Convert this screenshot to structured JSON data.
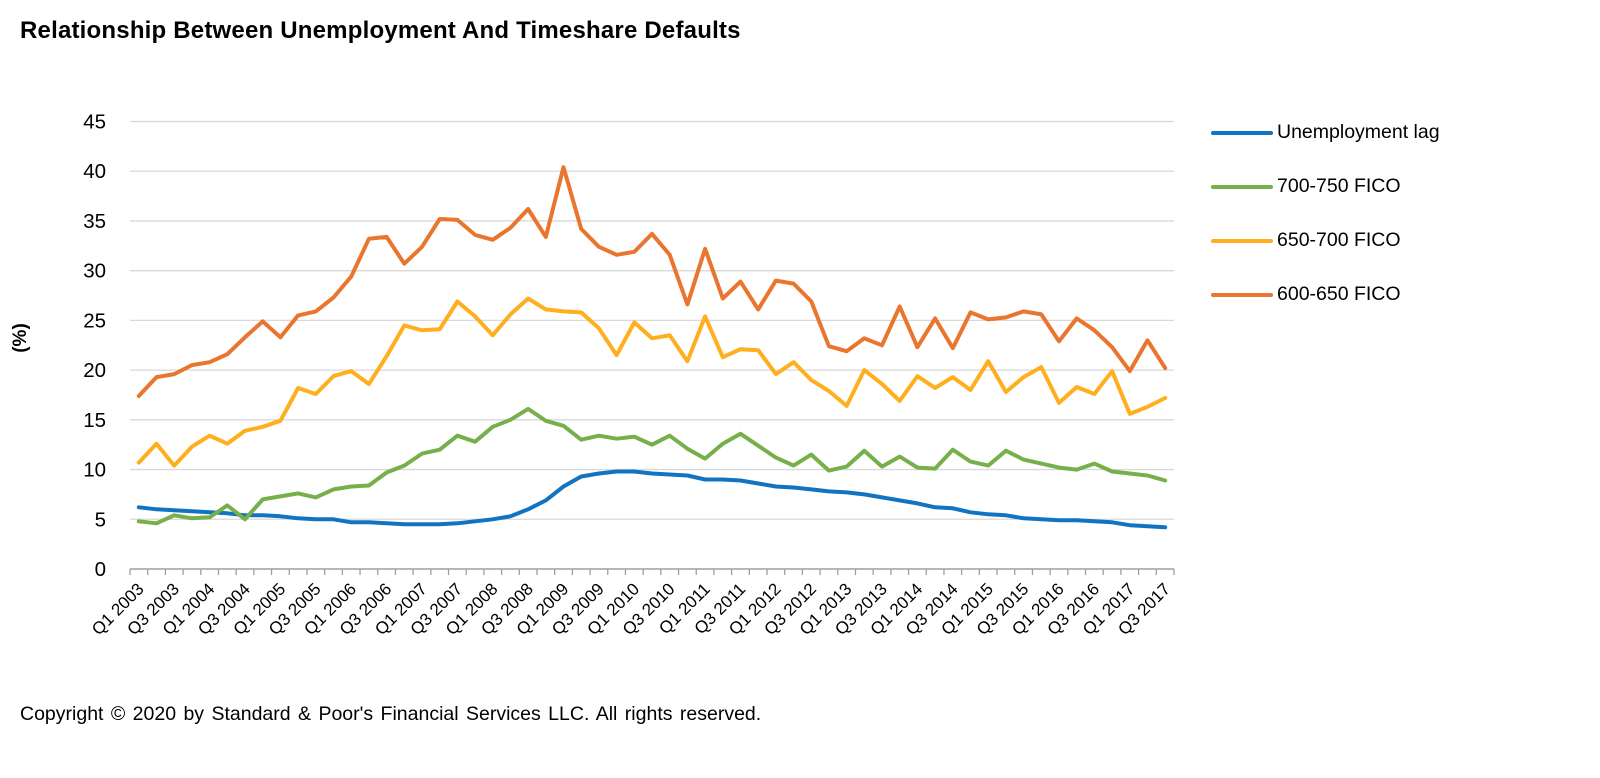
{
  "title": "Relationship Between Unemployment And Timeshare Defaults",
  "y_axis_label": "(%)",
  "copyright": "Copyright © 2020 by Standard & Poor's Financial Services LLC. All rights reserved.",
  "colors": {
    "gridline": "#d9d9d9",
    "axis": "#9e9e9e",
    "tick": "#9e9e9e",
    "text": "#000000"
  },
  "chart_data": {
    "type": "line",
    "title": "Relationship Between Unemployment And Timeshare Defaults",
    "xlabel": "",
    "ylabel": "(%)",
    "ylim": [
      0,
      45
    ],
    "y_tick_step": 5,
    "x_tick_label_interval": 2,
    "grid": true,
    "legend_position": "right",
    "x": [
      "Q1 2003",
      "Q2 2003",
      "Q3 2003",
      "Q4 2003",
      "Q1 2004",
      "Q2 2004",
      "Q3 2004",
      "Q4 2004",
      "Q1 2005",
      "Q2 2005",
      "Q3 2005",
      "Q4 2005",
      "Q1 2006",
      "Q2 2006",
      "Q3 2006",
      "Q4 2006",
      "Q1 2007",
      "Q2 2007",
      "Q3 2007",
      "Q4 2007",
      "Q1 2008",
      "Q2 2008",
      "Q3 2008",
      "Q4 2008",
      "Q1 2009",
      "Q2 2009",
      "Q3 2009",
      "Q4 2009",
      "Q1 2010",
      "Q2 2010",
      "Q3 2010",
      "Q4 2010",
      "Q1 2011",
      "Q2 2011",
      "Q3 2011",
      "Q4 2011",
      "Q1 2012",
      "Q2 2012",
      "Q3 2012",
      "Q4 2012",
      "Q1 2013",
      "Q2 2013",
      "Q3 2013",
      "Q4 2013",
      "Q1 2014",
      "Q2 2014",
      "Q3 2014",
      "Q4 2014",
      "Q1 2015",
      "Q2 2015",
      "Q3 2015",
      "Q4 2015",
      "Q1 2016",
      "Q2 2016",
      "Q3 2016",
      "Q4 2016",
      "Q1 2017",
      "Q2 2017",
      "Q3 2017"
    ],
    "series": [
      {
        "name": "Unemployment lag",
        "color": "#1273c0",
        "values": [
          6.2,
          6.0,
          5.9,
          5.8,
          5.7,
          5.6,
          5.4,
          5.4,
          5.3,
          5.1,
          5.0,
          5.0,
          4.7,
          4.7,
          4.6,
          4.5,
          4.5,
          4.5,
          4.6,
          4.8,
          5.0,
          5.3,
          6.0,
          6.9,
          8.3,
          9.3,
          9.6,
          9.8,
          9.8,
          9.6,
          9.5,
          9.4,
          9.0,
          9.0,
          8.9,
          8.6,
          8.3,
          8.2,
          8.0,
          7.8,
          7.7,
          7.5,
          7.2,
          6.9,
          6.6,
          6.2,
          6.1,
          5.7,
          5.5,
          5.4,
          5.1,
          5.0,
          4.9,
          4.9,
          4.8,
          4.7,
          4.4,
          4.3,
          4.2
        ]
      },
      {
        "name": "700-750 FICO",
        "color": "#76b04a",
        "values": [
          4.8,
          4.6,
          5.4,
          5.1,
          5.2,
          6.4,
          5.0,
          7.0,
          7.3,
          7.6,
          7.2,
          8.0,
          8.3,
          8.4,
          9.7,
          10.4,
          11.6,
          12.0,
          13.4,
          12.8,
          14.3,
          15.0,
          16.1,
          14.9,
          14.4,
          13.0,
          13.4,
          13.1,
          13.3,
          12.5,
          13.4,
          12.1,
          11.1,
          12.6,
          13.6,
          12.4,
          11.2,
          10.4,
          11.5,
          9.9,
          10.3,
          11.9,
          10.3,
          11.3,
          10.2,
          10.1,
          12.0,
          10.8,
          10.4,
          11.9,
          11.0,
          10.6,
          10.2,
          10.0,
          10.6,
          9.8,
          9.6,
          9.4,
          8.9
        ]
      },
      {
        "name": "650-700 FICO",
        "color": "#ffaf1e",
        "values": [
          10.7,
          12.6,
          10.4,
          12.3,
          13.4,
          12.6,
          13.9,
          14.3,
          14.9,
          18.2,
          17.6,
          19.4,
          19.9,
          18.6,
          21.4,
          24.5,
          24.0,
          24.1,
          26.9,
          25.4,
          23.5,
          25.6,
          27.2,
          26.1,
          25.9,
          25.8,
          24.2,
          21.5,
          24.8,
          23.2,
          23.5,
          20.9,
          25.4,
          21.3,
          22.1,
          22.0,
          19.6,
          20.8,
          19.0,
          17.9,
          16.4,
          20.0,
          18.6,
          16.9,
          19.4,
          18.2,
          19.3,
          18.0,
          20.9,
          17.8,
          19.3,
          20.3,
          16.7,
          18.3,
          17.6,
          19.9,
          15.6,
          16.3,
          17.2
        ]
      },
      {
        "name": "600-650 FICO",
        "color": "#e9752e",
        "values": [
          17.4,
          19.3,
          19.6,
          20.5,
          20.8,
          21.6,
          23.3,
          24.9,
          23.3,
          25.5,
          25.9,
          27.3,
          29.4,
          33.2,
          33.4,
          30.7,
          32.4,
          35.2,
          35.1,
          33.6,
          33.1,
          34.3,
          36.2,
          33.4,
          40.4,
          34.2,
          32.4,
          31.6,
          31.9,
          33.7,
          31.6,
          26.6,
          32.2,
          27.2,
          28.9,
          26.1,
          29.0,
          28.7,
          26.9,
          22.4,
          21.9,
          23.2,
          22.5,
          26.4,
          22.3,
          25.2,
          22.2,
          25.8,
          25.1,
          25.3,
          25.9,
          25.6,
          22.9,
          25.2,
          24.0,
          22.3,
          19.9,
          23.0,
          20.2
        ]
      }
    ]
  }
}
